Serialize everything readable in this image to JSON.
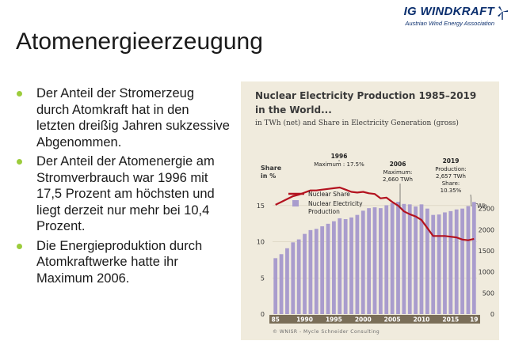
{
  "logo": {
    "name": "IG WINDKRAFT",
    "subtitle": "Austrian Wind Energy Association",
    "brand_color": "#0b2f6e",
    "icon": "windmill-icon"
  },
  "slide": {
    "title": "Atomenergieerzeugung",
    "bullet_color": "#9ccc3c",
    "bullets": [
      "Der Anteil der Stromerzeug durch Atomkraft hat in den letzten dreißig Jahren sukzessive Abgenommen.",
      "Der Anteil der Atomenergie am Stromverbrauch war 1996 mit 17,5 Prozent am höchsten und liegt derzeit nur mehr bei 10,4 Prozent.",
      "Die Energieproduktion durch Atomkraftwerke hatte ihr Maximum 2006."
    ]
  },
  "chart_data": {
    "type": "bar",
    "title_line1": "Nuclear Electricity Production 1985–2019",
    "title_line2": "in the World...",
    "subtitle": "in TWh (net) and Share in Electricity Generation (gross)",
    "left_axis_label_line1": "Share",
    "left_axis_label_line2": "in %",
    "right_axis_unit": "TWh",
    "left_ylim": [
      0,
      17.5
    ],
    "right_ylim": [
      0,
      3000
    ],
    "left_ticks": [
      "0",
      "5",
      "10",
      "15"
    ],
    "right_ticks": [
      "0",
      "500",
      "1000",
      "1500",
      "2000",
      "2500"
    ],
    "x_tick_labels": [
      "85",
      "1990",
      "1995",
      "2000",
      "2005",
      "2010",
      "2015",
      "19"
    ],
    "x_tick_years": [
      1985,
      1990,
      1995,
      2000,
      2005,
      2010,
      2015,
      2019
    ],
    "years": [
      1985,
      1986,
      1987,
      1988,
      1989,
      1990,
      1991,
      1992,
      1993,
      1994,
      1995,
      1996,
      1997,
      1998,
      1999,
      2000,
      2001,
      2002,
      2003,
      2004,
      2005,
      2006,
      2007,
      2008,
      2009,
      2010,
      2011,
      2012,
      2013,
      2014,
      2015,
      2016,
      2017,
      2018,
      2019
    ],
    "series": [
      {
        "name": "Nuclear Share",
        "color": "#b3121f",
        "axis": "left",
        "values": [
          15.1,
          15.5,
          15.9,
          16.3,
          16.5,
          16.8,
          17.1,
          17.1,
          17.2,
          17.3,
          17.4,
          17.5,
          17.2,
          16.9,
          16.8,
          16.9,
          16.7,
          16.6,
          16.0,
          16.1,
          15.5,
          15.0,
          14.2,
          13.8,
          13.5,
          13.0,
          11.9,
          10.8,
          10.8,
          10.8,
          10.7,
          10.6,
          10.3,
          10.2,
          10.4
        ]
      },
      {
        "name": "Nuclear Electricity Production",
        "color": "#a99ccd",
        "axis": "right",
        "values": [
          1325,
          1420,
          1560,
          1700,
          1770,
          1900,
          1990,
          2020,
          2080,
          2140,
          2200,
          2270,
          2250,
          2290,
          2350,
          2450,
          2510,
          2530,
          2510,
          2580,
          2630,
          2660,
          2610,
          2600,
          2550,
          2600,
          2500,
          2350,
          2360,
          2410,
          2440,
          2480,
          2500,
          2560,
          2657
        ]
      }
    ],
    "annotations": [
      {
        "year": "1996",
        "text": "Maximum : 17.5%"
      },
      {
        "year": "2006",
        "line1": "Maximum:",
        "line2": "2,660 TWh"
      },
      {
        "year": "2019",
        "line1": "Production:",
        "line2": "2,657 TWh",
        "line3": "Share:",
        "line4": "10.35%"
      }
    ],
    "credit": "© WNISR - Mycle Schneider Consulting",
    "background_color": "#f0ebdd"
  }
}
